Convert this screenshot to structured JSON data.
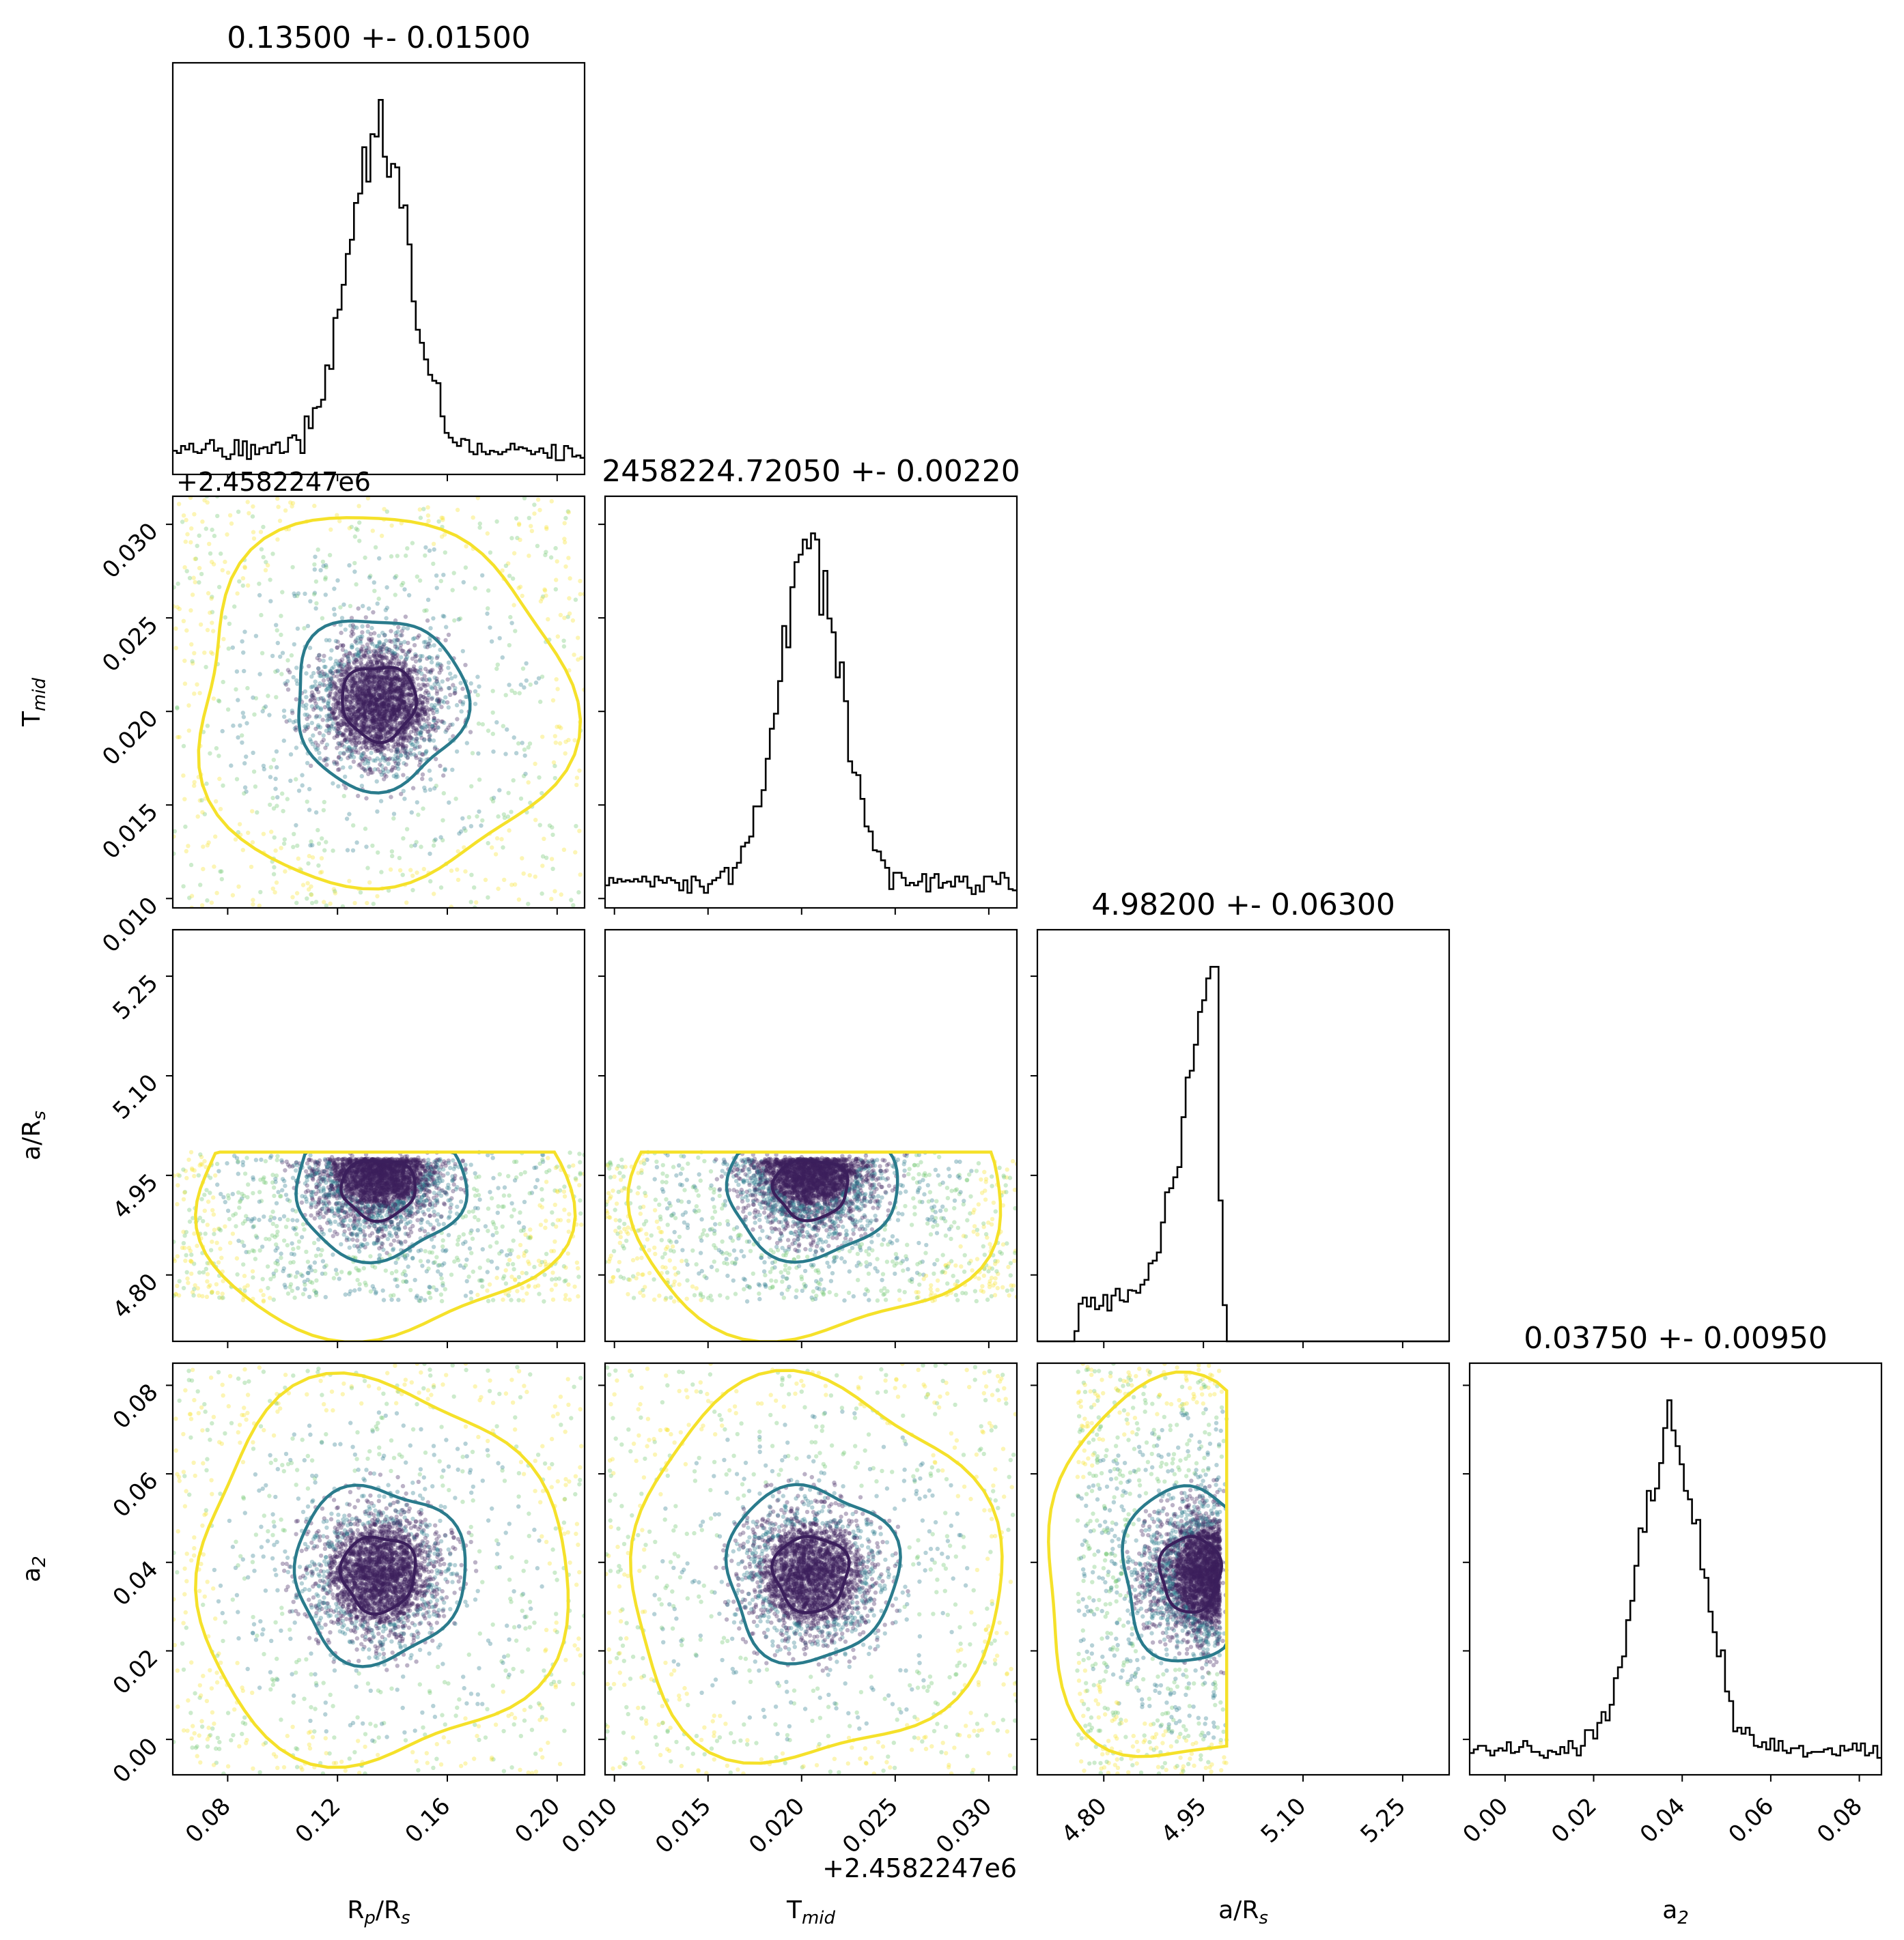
{
  "chart_data": {
    "type": "scatter",
    "description_free": true,
    "parameters": [
      {
        "key": "rprs",
        "axis_label": "R",
        "axis_label_sub": "p",
        "axis_label_rest": "/R",
        "axis_label_sub2": "s",
        "title": "0.13500 +- 0.01500",
        "range": [
          0.06,
          0.21
        ],
        "ticks": [
          0.08,
          0.12,
          0.16,
          0.2
        ],
        "tick_labels": [
          "0.08",
          "0.12",
          "0.16",
          "0.20"
        ],
        "mean": 0.135,
        "sigma": 0.015,
        "offset": ""
      },
      {
        "key": "tmid",
        "axis_label": "T",
        "axis_label_sub": "mid",
        "axis_label_rest": "",
        "axis_label_sub2": "",
        "title": "2458224.72050 +- 0.00220",
        "range": [
          0.0095,
          0.0315
        ],
        "ticks": [
          0.01,
          0.015,
          0.02,
          0.025,
          0.03
        ],
        "tick_labels": [
          "0.010",
          "0.015",
          "0.020",
          "0.025",
          "0.030"
        ],
        "mean": 0.0205,
        "sigma": 0.0022,
        "offset": "+2.4582247e6"
      },
      {
        "key": "ars",
        "axis_label": "a/R",
        "axis_label_sub": "s",
        "axis_label_rest": "",
        "axis_label_sub2": "",
        "title": "4.98200 +- 0.06300",
        "range": [
          4.7,
          5.32
        ],
        "ticks": [
          4.8,
          4.95,
          5.1,
          5.25
        ],
        "tick_labels": [
          "4.80",
          "4.95",
          "5.10",
          "5.25"
        ],
        "mean": 4.982,
        "sigma": 0.063,
        "offset": ""
      },
      {
        "key": "a2",
        "axis_label": "a",
        "axis_label_sub": "2",
        "axis_label_rest": "",
        "axis_label_sub2": "",
        "title": "0.03750 +- 0.00950",
        "range": [
          -0.008,
          0.085
        ],
        "ticks": [
          0.0,
          0.02,
          0.04,
          0.06,
          0.08
        ],
        "tick_labels": [
          "0.00",
          "0.02",
          "0.04",
          "0.06",
          "0.08"
        ],
        "mean": 0.0375,
        "sigma": 0.0095,
        "offset": ""
      }
    ],
    "colors": {
      "inner_contour": "#3b1f5c",
      "middle_contour": "#2a7b8c",
      "outer_contour": "#f5e12a",
      "points_dark": "#3b1f5c",
      "points_mid": "#2a7b8c",
      "points_green": "#6cc66c",
      "points_light": "#f5e12a",
      "histogram": "#000000"
    }
  }
}
